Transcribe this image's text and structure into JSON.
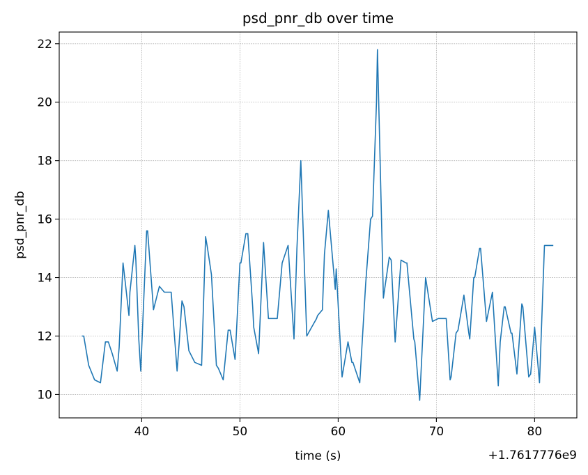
{
  "chart_data": {
    "type": "line",
    "title": "psd_pnr_db over time",
    "xlabel": "time (s)",
    "ylabel": "psd_pnr_db",
    "x_offset_label": "+1.7617776e9",
    "xlim": [
      31.6,
      84.3
    ],
    "ylim": [
      9.2,
      22.4
    ],
    "x_ticks": [
      40,
      50,
      60,
      70,
      80
    ],
    "y_ticks": [
      10,
      12,
      14,
      16,
      18,
      20,
      22
    ],
    "grid": true,
    "line_color": "#1f77b4",
    "series": [
      {
        "x": [
          33.9,
          34.1,
          34.6,
          35.2,
          35.8,
          36.3,
          36.6,
          37.0,
          37.5,
          37.7,
          38.1,
          38.3,
          38.7,
          38.8,
          39.3,
          39.4,
          39.7,
          39.9,
          40.5,
          40.6,
          41.2,
          41.8,
          42.3,
          42.7,
          43.0,
          43.6,
          43.8,
          44.1,
          44.3,
          44.8,
          45.4,
          46.1,
          46.5,
          46.7,
          47.1,
          47.6,
          47.8,
          48.3,
          48.8,
          49.0,
          49.5,
          50.0,
          50.1,
          50.6,
          50.8,
          51.3,
          51.4,
          51.9,
          52.4,
          52.9,
          53.8,
          54.3,
          54.9,
          55.5,
          55.8,
          56.2,
          56.8,
          57.3,
          57.8,
          57.9,
          58.4,
          58.6,
          59.0,
          59.7,
          59.8,
          60.4,
          61.0,
          61.4,
          61.5,
          62.2,
          62.8,
          63.3,
          63.5,
          63.9,
          64.0,
          64.6,
          65.2,
          65.4,
          65.8,
          66.4,
          66.9,
          67.0,
          67.7,
          67.8,
          68.3,
          68.9,
          69.6,
          70.2,
          71.0,
          71.4,
          71.5,
          72.0,
          72.2,
          72.8,
          73.3,
          73.4,
          73.8,
          73.9,
          74.4,
          74.5,
          75.1,
          75.7,
          76.3,
          76.5,
          76.9,
          77.0,
          77.6,
          77.7,
          78.2,
          78.7,
          78.8,
          79.4,
          79.6,
          80.0,
          80.5,
          81.0,
          81.9
        ],
        "y": [
          12.0,
          12.0,
          11.0,
          10.5,
          10.4,
          11.8,
          11.8,
          11.4,
          10.8,
          11.6,
          14.5,
          13.9,
          12.7,
          13.5,
          15.1,
          14.6,
          11.9,
          10.8,
          15.6,
          15.6,
          12.9,
          13.7,
          13.5,
          13.5,
          13.5,
          10.8,
          11.7,
          13.2,
          13.0,
          11.5,
          11.1,
          11.0,
          15.4,
          15.0,
          14.1,
          11.0,
          10.9,
          10.5,
          12.2,
          12.2,
          11.2,
          14.5,
          14.5,
          15.5,
          15.5,
          13.0,
          12.3,
          11.4,
          15.2,
          12.6,
          12.6,
          14.5,
          15.1,
          11.9,
          15.0,
          18.0,
          12.0,
          12.3,
          12.6,
          12.7,
          12.9,
          14.8,
          16.3,
          13.6,
          14.3,
          10.6,
          11.8,
          11.1,
          11.1,
          10.4,
          13.8,
          16.0,
          16.1,
          20.0,
          21.8,
          13.3,
          14.7,
          14.6,
          11.8,
          14.6,
          14.5,
          14.5,
          11.9,
          11.8,
          9.8,
          14.0,
          12.5,
          12.6,
          12.6,
          10.5,
          10.6,
          12.1,
          12.2,
          13.4,
          12.1,
          11.9,
          14.0,
          14.0,
          15.0,
          15.0,
          12.5,
          13.5,
          10.3,
          11.8,
          13.0,
          13.0,
          12.1,
          12.1,
          10.7,
          13.1,
          13.0,
          10.6,
          10.7,
          12.3,
          10.4,
          15.1,
          15.1
        ]
      }
    ]
  }
}
